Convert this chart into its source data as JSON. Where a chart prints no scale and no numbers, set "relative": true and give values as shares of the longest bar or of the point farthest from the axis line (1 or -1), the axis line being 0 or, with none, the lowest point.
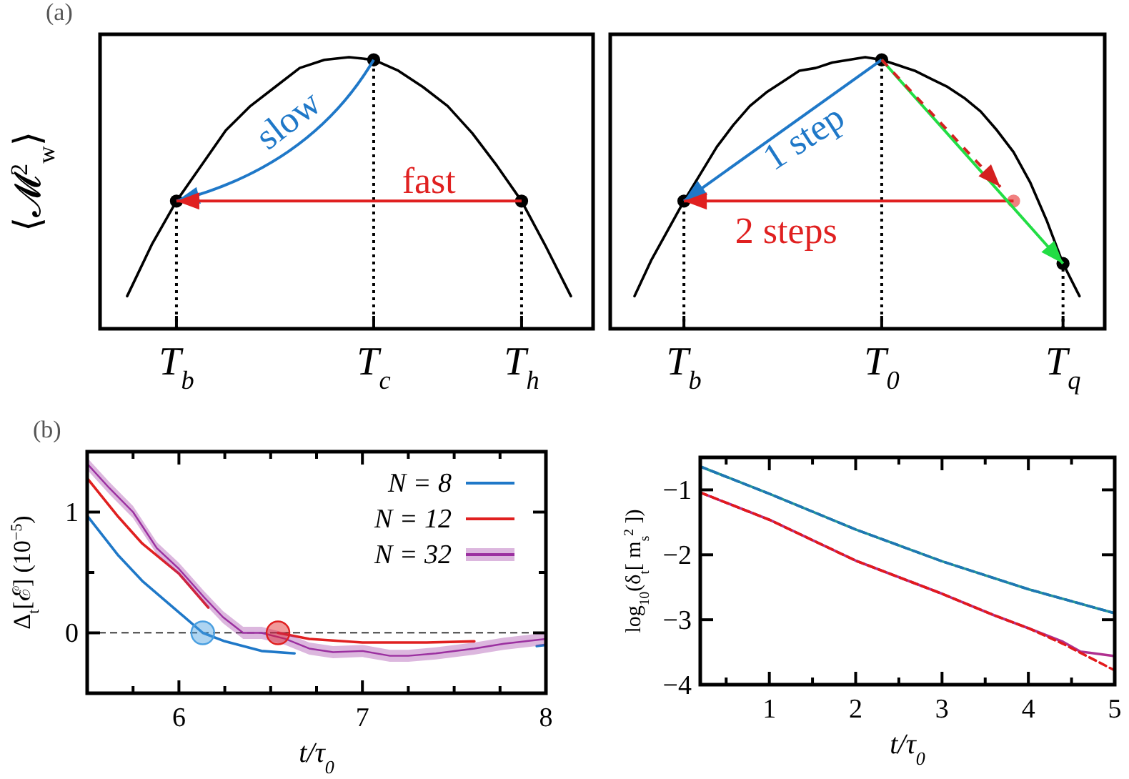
{
  "chart_data": [
    {
      "type": "line",
      "title": "(a)",
      "ylabel": "⟨𝓜$^{2}$$_{w}$⟩",
      "relative": true,
      "categories": [
        null,
        null,
        null,
        "T$_{b}$",
        null,
        null,
        null,
        null,
        null,
        null,
        null,
        "T$_{c}$",
        null,
        null,
        null,
        null,
        null,
        "T$_{h}$",
        null,
        null
      ],
      "series": [
        {
          "color": "#000000",
          "values": [
            null,
            0.12,
            0.31,
            0.47,
            0.6,
            0.73,
            0.82,
            0.89,
            0.96,
            0.99,
            1.0,
            0.99,
            0.95,
            0.89,
            0.82,
            0.72,
            0.6,
            0.47,
            0.3,
            0.12
          ]
        },
        {
          "type": "lollipop",
          "color": "#000000",
          "marker": "circle",
          "line_style": "dotted",
          "values": [
            null,
            null,
            null,
            0.47,
            null,
            null,
            null,
            null,
            null,
            null,
            null,
            0.99,
            null,
            null,
            null,
            null,
            null,
            0.47,
            null,
            null
          ]
        }
      ],
      "annotations": [
        "slow",
        "fast"
      ]
    },
    {
      "type": "line",
      "relative": true,
      "categories": [
        null,
        null,
        null,
        null,
        "T$_{b}$",
        null,
        null,
        null,
        null,
        null,
        null,
        null,
        null,
        null,
        null,
        null,
        "T$_{0}$",
        null,
        null,
        null,
        null,
        null,
        null,
        null,
        null,
        null,
        null,
        "T$_{q}$",
        null,
        null
      ],
      "series": [
        {
          "color": "#000000",
          "values": [
            null,
            0.12,
            0.25,
            0.36,
            0.47,
            0.57,
            0.67,
            0.75,
            0.82,
            0.87,
            0.91,
            0.95,
            0.96,
            0.98,
            0.99,
            1.0,
            0.99,
            0.97,
            0.95,
            0.92,
            0.89,
            0.85,
            0.8,
            0.73,
            0.65,
            0.54,
            0.4,
            0.24,
            0.12,
            null
          ]
        },
        {
          "type": "lollipop",
          "color": "#000000",
          "marker": "circle",
          "line_style": "dotted",
          "values": [
            null,
            null,
            null,
            null,
            0.47,
            null,
            null,
            null,
            null,
            null,
            null,
            null,
            null,
            null,
            null,
            null,
            0.99,
            null,
            null,
            null,
            null,
            null,
            null,
            null,
            null,
            null,
            null,
            0.24,
            null,
            null
          ]
        },
        {
          "type": "scatter",
          "color": "#f08080",
          "marker": "circle",
          "values": [
            null,
            null,
            null,
            null,
            null,
            null,
            null,
            null,
            null,
            null,
            null,
            null,
            null,
            null,
            null,
            null,
            null,
            null,
            null,
            null,
            null,
            null,
            null,
            null,
            0.47,
            null,
            null,
            null,
            null,
            null
          ]
        }
      ],
      "annotations": [
        "1 step",
        "2 steps"
      ]
    },
    {
      "type": "line",
      "title": "(b)",
      "xlabel": "t/τ$_{0}$",
      "ylabel": "Δ$_{t}$[ℰ] (10$^{−5}$)",
      "xlim": [
        5.5,
        8
      ],
      "ylim": [
        -0.5,
        1.5
      ],
      "xticks": [
        {
          "value": 5.75,
          "label": null
        },
        6,
        {
          "value": 6.25,
          "label": null
        },
        {
          "value": 6.5,
          "label": null
        },
        {
          "value": 6.75,
          "label": null
        },
        7,
        {
          "value": 7.25,
          "label": null
        },
        {
          "value": 7.5,
          "label": null
        },
        {
          "value": 7.75,
          "label": null
        },
        8
      ],
      "yticks": [
        0,
        {
          "value": 0.5,
          "label": null
        },
        1
      ],
      "legend": "top right",
      "series": [
        {
          "name": "N = 8",
          "color": "#1f78c8",
          "x": [
            5.5,
            5.67,
            5.8,
            6.0,
            6.13,
            6.25,
            6.45,
            6.63,
            6.66,
            7.95,
            8.0
          ],
          "values": [
            0.97,
            0.64,
            0.43,
            0.17,
            0,
            -0.07,
            -0.15,
            -0.17,
            null,
            -0.11,
            -0.1
          ]
        },
        {
          "name": "N = 12",
          "color": "#e02020",
          "x": [
            5.5,
            5.67,
            5.8,
            6.0,
            6.16,
            6.2,
            6.54,
            6.71,
            7.0,
            7.35,
            7.61
          ],
          "values": [
            1.28,
            0.96,
            0.74,
            0.49,
            0.21,
            null,
            0,
            -0.05,
            -0.08,
            -0.08,
            -0.07
          ]
        },
        {
          "name": "N = 32",
          "color": "#9b30a0",
          "x": [
            5.5,
            5.62,
            5.75,
            5.88,
            6.0,
            6.14,
            6.24,
            6.35,
            6.45,
            6.58,
            6.71,
            6.84,
            7.0,
            7.15,
            7.25,
            7.4,
            7.61,
            7.77,
            8.0
          ],
          "values": [
            1.4,
            1.2,
            1.0,
            0.7,
            0.53,
            0.29,
            0.13,
            0,
            0,
            -0.05,
            -0.13,
            -0.16,
            -0.15,
            -0.19,
            -0.19,
            -0.17,
            -0.13,
            -0.09,
            -0.05
          ],
          "lower": [
            1.35,
            1.15,
            0.95,
            0.65,
            0.48,
            0.24,
            0.08,
            -0.05,
            -0.05,
            -0.1,
            -0.18,
            -0.21,
            -0.2,
            -0.24,
            -0.24,
            -0.22,
            -0.18,
            -0.14,
            -0.1
          ],
          "upper": [
            1.45,
            1.25,
            1.05,
            0.75,
            0.58,
            0.34,
            0.18,
            0.05,
            0.05,
            0,
            -0.08,
            -0.11,
            -0.1,
            -0.14,
            -0.14,
            -0.12,
            -0.08,
            -0.04,
            0
          ]
        },
        {
          "type": "scatter",
          "color": "#4a9fe0",
          "marker": "circle",
          "x": [
            6.13
          ],
          "values": [
            0
          ]
        },
        {
          "type": "scatter",
          "color": "#e02020",
          "marker": "circle",
          "x": [
            6.54
          ],
          "values": [
            0
          ]
        }
      ],
      "ref_lines": [
        {
          "axis": "y",
          "value": 0,
          "color": "#000000",
          "line_style": "dashed"
        }
      ]
    },
    {
      "type": "line",
      "xlabel": "t/τ$_{0}$",
      "ylabel": "log$_{10}$(δ$_{t}$[ m$_{s}$$^{2}$ ])",
      "xlim": [
        0.2,
        5
      ],
      "ylim": [
        -4,
        -0.5
      ],
      "xticks": [
        {
          "value": 0.5,
          "label": null
        },
        1,
        {
          "value": 1.5,
          "label": null
        },
        2,
        {
          "value": 2.5,
          "label": null
        },
        3,
        {
          "value": 3.5,
          "label": null
        },
        4,
        {
          "value": 4.5,
          "label": null
        },
        5
      ],
      "yticks": [
        -4,
        -3,
        -2,
        -1
      ],
      "series": [
        {
          "color": "#2a9d8f",
          "x": [
            0.2,
            1,
            2,
            3,
            4,
            5
          ],
          "values": [
            -0.64,
            -1.06,
            -1.61,
            -2.1,
            -2.53,
            -2.9
          ]
        },
        {
          "color": "#1f77b4",
          "line_style": "dashed",
          "x": [
            0.2,
            1,
            2,
            3,
            4,
            5
          ],
          "values": [
            -0.64,
            -1.06,
            -1.61,
            -2.1,
            -2.53,
            -2.9
          ]
        },
        {
          "color": "#b0308f",
          "x": [
            0.2,
            1,
            2,
            3,
            3.6,
            4,
            4.4,
            4.6,
            5
          ],
          "values": [
            -1.04,
            -1.46,
            -2.09,
            -2.6,
            -2.93,
            -3.13,
            -3.34,
            -3.49,
            -3.56
          ]
        },
        {
          "color": "#e31a1c",
          "line_style": "dashed",
          "x": [
            0.2,
            1,
            2,
            3,
            3.6,
            4,
            4.4,
            5
          ],
          "values": [
            -1.04,
            -1.46,
            -2.09,
            -2.6,
            -2.93,
            -3.13,
            -3.37,
            -3.78
          ]
        }
      ]
    }
  ]
}
